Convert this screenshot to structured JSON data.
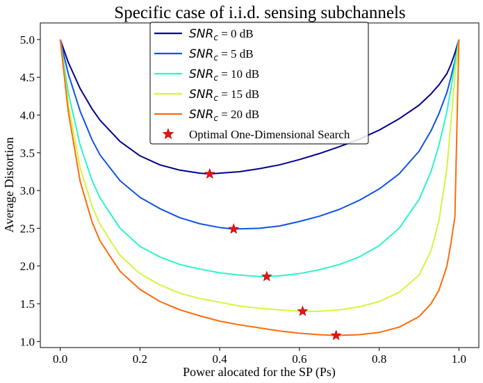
{
  "chart_data": {
    "type": "line",
    "title": "Specific case of i.i.d. sensing subchannels",
    "xlabel": "Power alocated for the SP (Ps)",
    "ylabel": "Average Distortion",
    "xlim": [
      -0.05,
      1.05
    ],
    "ylim": [
      0.92,
      5.22
    ],
    "xticks": [
      0.0,
      0.2,
      0.4,
      0.6,
      0.8,
      1.0
    ],
    "xtick_labels": [
      "0.0",
      "0.2",
      "0.4",
      "0.6",
      "0.8",
      "1.0"
    ],
    "yticks": [
      1.0,
      1.5,
      2.0,
      2.5,
      3.0,
      3.5,
      4.0,
      4.5,
      5.0
    ],
    "ytick_labels": [
      "1.0",
      "1.5",
      "2.0",
      "2.5",
      "3.0",
      "3.5",
      "4.0",
      "4.5",
      "5.0"
    ],
    "grid": false,
    "legend_position": "top-center",
    "series": [
      {
        "name_math": "SNR",
        "name_sub": "c",
        "name_rest": " = 0 dB",
        "color": "#00008b",
        "x": [
          0.0,
          0.02,
          0.05,
          0.08,
          0.1,
          0.15,
          0.2,
          0.25,
          0.3,
          0.35,
          0.375,
          0.4,
          0.45,
          0.5,
          0.55,
          0.6,
          0.65,
          0.7,
          0.75,
          0.8,
          0.85,
          0.9,
          0.93,
          0.95,
          0.97,
          0.98,
          0.99,
          1.0
        ],
        "y": [
          5.0,
          4.7,
          4.35,
          4.08,
          3.93,
          3.65,
          3.46,
          3.34,
          3.27,
          3.23,
          3.22,
          3.23,
          3.25,
          3.29,
          3.34,
          3.41,
          3.49,
          3.58,
          3.68,
          3.8,
          3.95,
          4.13,
          4.28,
          4.4,
          4.55,
          4.67,
          4.82,
          5.0
        ]
      },
      {
        "name_math": "SNR",
        "name_sub": "c",
        "name_rest": " = 5 dB",
        "color": "#0d52e8",
        "x": [
          0.0,
          0.02,
          0.05,
          0.08,
          0.1,
          0.15,
          0.2,
          0.25,
          0.3,
          0.35,
          0.4,
          0.435,
          0.5,
          0.55,
          0.6,
          0.65,
          0.7,
          0.75,
          0.8,
          0.85,
          0.9,
          0.93,
          0.95,
          0.97,
          0.98,
          0.99,
          1.0
        ],
        "y": [
          5.0,
          4.55,
          4.05,
          3.67,
          3.47,
          3.13,
          2.91,
          2.76,
          2.64,
          2.56,
          2.51,
          2.49,
          2.5,
          2.53,
          2.59,
          2.66,
          2.75,
          2.87,
          3.02,
          3.22,
          3.52,
          3.79,
          4.02,
          4.3,
          4.5,
          4.72,
          5.0
        ]
      },
      {
        "name_math": "SNR",
        "name_sub": "c",
        "name_rest": " = 10 dB",
        "color": "#29f5c8",
        "x": [
          0.0,
          0.02,
          0.05,
          0.08,
          0.1,
          0.15,
          0.2,
          0.25,
          0.3,
          0.35,
          0.4,
          0.45,
          0.5,
          0.518,
          0.55,
          0.6,
          0.65,
          0.7,
          0.75,
          0.8,
          0.85,
          0.9,
          0.93,
          0.95,
          0.97,
          0.98,
          0.99,
          1.0
        ],
        "y": [
          5.0,
          4.3,
          3.6,
          3.13,
          2.9,
          2.5,
          2.26,
          2.12,
          2.02,
          1.96,
          1.91,
          1.88,
          1.86,
          1.86,
          1.87,
          1.9,
          1.95,
          2.02,
          2.12,
          2.27,
          2.5,
          2.88,
          3.25,
          3.6,
          4.05,
          4.35,
          4.68,
          5.0
        ]
      },
      {
        "name_math": "SNR",
        "name_sub": "c",
        "name_rest": " = 15 dB",
        "color": "#d4f53c",
        "x": [
          0.0,
          0.02,
          0.05,
          0.08,
          0.1,
          0.15,
          0.2,
          0.25,
          0.3,
          0.35,
          0.4,
          0.45,
          0.5,
          0.55,
          0.608,
          0.65,
          0.7,
          0.75,
          0.8,
          0.85,
          0.9,
          0.93,
          0.95,
          0.97,
          0.98,
          0.99,
          1.0
        ],
        "y": [
          5.0,
          4.15,
          3.3,
          2.79,
          2.55,
          2.14,
          1.9,
          1.75,
          1.64,
          1.57,
          1.52,
          1.47,
          1.44,
          1.42,
          1.4,
          1.4,
          1.42,
          1.46,
          1.53,
          1.65,
          1.88,
          2.2,
          2.6,
          3.3,
          3.9,
          4.5,
          5.0
        ]
      },
      {
        "name_math": "SNR",
        "name_sub": "c",
        "name_rest": " = 20 dB",
        "color": "#ff6a0a",
        "x": [
          0.0,
          0.02,
          0.05,
          0.08,
          0.1,
          0.15,
          0.2,
          0.25,
          0.3,
          0.35,
          0.4,
          0.45,
          0.5,
          0.55,
          0.6,
          0.65,
          0.692,
          0.75,
          0.8,
          0.85,
          0.9,
          0.93,
          0.95,
          0.97,
          0.98,
          0.99,
          1.0
        ],
        "y": [
          5.0,
          4.05,
          3.12,
          2.58,
          2.33,
          1.93,
          1.69,
          1.53,
          1.42,
          1.34,
          1.27,
          1.22,
          1.18,
          1.14,
          1.11,
          1.09,
          1.08,
          1.09,
          1.12,
          1.19,
          1.33,
          1.5,
          1.68,
          2.0,
          2.3,
          2.65,
          5.0
        ]
      }
    ],
    "optimal_points": {
      "name": "Optimal One-Dimensional Search",
      "color": "#ee1111",
      "x": [
        0.375,
        0.435,
        0.518,
        0.608,
        0.692
      ],
      "y": [
        3.22,
        2.49,
        1.86,
        1.4,
        1.08
      ]
    }
  }
}
